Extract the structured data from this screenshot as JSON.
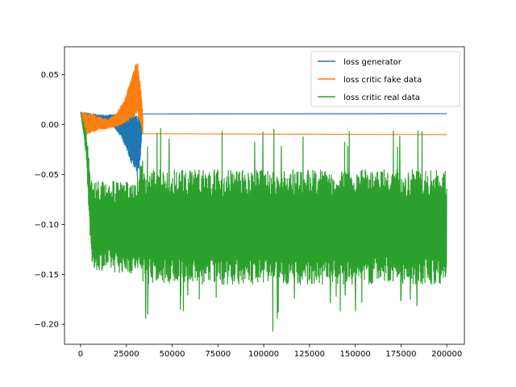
{
  "chart_data": {
    "type": "line",
    "title": "",
    "xlabel": "",
    "ylabel": "",
    "xlim": [
      -8800,
      209600
    ],
    "ylim": [
      -0.22,
      0.078
    ],
    "grid": false,
    "legend_position": "top-right",
    "x_ticks": [
      0,
      25000,
      50000,
      75000,
      100000,
      125000,
      150000,
      175000,
      200000
    ],
    "x_tick_labels": [
      "0",
      "25000",
      "50000",
      "75000",
      "100000",
      "125000",
      "150000",
      "175000",
      "200000"
    ],
    "y_ticks": [
      0.05,
      0.0,
      -0.05,
      -0.1,
      -0.15,
      -0.2
    ],
    "y_tick_labels": [
      "0.05",
      "0.00",
      "−0.05",
      "−0.10",
      "−0.15",
      "−0.20"
    ],
    "series": [
      {
        "name": "loss generator",
        "color": "#1f77b4",
        "style": "band",
        "x": [
          0,
          3000,
          10000,
          18000,
          23000,
          26000,
          29000,
          31000,
          32500,
          34000,
          35000,
          200000
        ],
        "upper": [
          0.012,
          0.012,
          0.01,
          0.01,
          0.012,
          0.013,
          0.012,
          0.008,
          0.01,
          0.011,
          0.011,
          0.011
        ],
        "lower": [
          0.012,
          -0.003,
          -0.003,
          -0.002,
          -0.015,
          -0.03,
          -0.045,
          -0.052,
          -0.04,
          0.011,
          0.011,
          0.011
        ]
      },
      {
        "name": "loss critic fake data",
        "color": "#ff7f0e",
        "style": "band",
        "x": [
          0,
          3000,
          10000,
          15000,
          20000,
          25000,
          29000,
          31000,
          32500,
          34000,
          35000,
          200000
        ],
        "upper": [
          0.012,
          0.012,
          0.008,
          0.005,
          0.012,
          0.03,
          0.055,
          0.066,
          0.045,
          0.01,
          -0.01,
          -0.01
        ],
        "lower": [
          0.012,
          -0.01,
          -0.005,
          -0.004,
          -0.002,
          0.002,
          0.008,
          0.01,
          0.0,
          -0.01,
          -0.01,
          -0.01
        ]
      },
      {
        "name": "loss critic real data",
        "color": "#2ca02c",
        "style": "noise",
        "x_start": 0,
        "x_end": 200000,
        "samples": [
          [
            0,
            0.013
          ],
          [
            3000,
            -0.02
          ],
          [
            6000,
            -0.13
          ],
          [
            20000,
            -0.15
          ],
          [
            30000,
            -0.155
          ],
          [
            35000,
            -0.1
          ],
          [
            36000,
            -0.16
          ],
          [
            100000,
            -0.168
          ],
          [
            105000,
            -0.207
          ],
          [
            200000,
            -0.165
          ]
        ],
        "band_early": {
          "x": [
            0,
            3000,
            6000,
            30000,
            33000,
            35000
          ],
          "upper": [
            0.013,
            -0.005,
            -0.055,
            -0.058,
            -0.04,
            -0.025
          ],
          "lower": [
            0.013,
            -0.03,
            -0.145,
            -0.15,
            -0.155,
            -0.16
          ]
        },
        "band_late": {
          "upper": -0.045,
          "lower": -0.16,
          "spike_up": -0.023,
          "spike_down": -0.195
        },
        "min_point": [
          105000,
          -0.207
        ]
      }
    ]
  }
}
